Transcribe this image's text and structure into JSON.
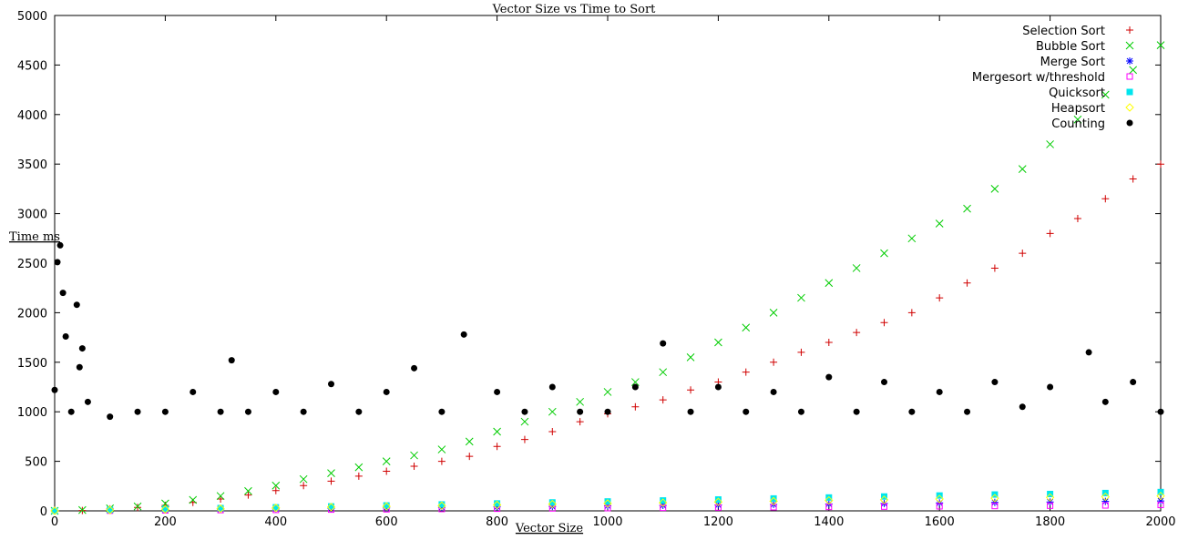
{
  "chart_data": {
    "type": "scatter",
    "title": "Vector Size vs Time to Sort",
    "xlabel": "Vector Size",
    "ylabel": "Time ms",
    "xlim": [
      0,
      2000
    ],
    "ylim": [
      0,
      5000
    ],
    "xticks": [
      "0",
      "200",
      "400",
      "600",
      "800",
      "1000",
      "1200",
      "1400",
      "1600",
      "1800",
      "2000"
    ],
    "yticks": [
      "0",
      "500",
      "1000",
      "1500",
      "2000",
      "2500",
      "3000",
      "3500",
      "4000",
      "4500",
      "5000"
    ],
    "grid": false,
    "legend_position": "top-right",
    "series": [
      {
        "name": "Selection Sort",
        "marker": "plus",
        "color": "#d00000",
        "x": [
          0,
          50,
          100,
          150,
          200,
          250,
          300,
          350,
          400,
          450,
          500,
          550,
          600,
          650,
          700,
          750,
          800,
          850,
          900,
          950,
          1000,
          1050,
          1100,
          1150,
          1200,
          1250,
          1300,
          1350,
          1400,
          1450,
          1500,
          1550,
          1600,
          1650,
          1700,
          1750,
          1800,
          1850,
          1900,
          1950,
          2000
        ],
        "y": [
          0,
          4,
          20,
          35,
          55,
          85,
          120,
          160,
          205,
          255,
          300,
          350,
          400,
          450,
          500,
          550,
          650,
          720,
          800,
          900,
          980,
          1050,
          1120,
          1220,
          1300,
          1400,
          1500,
          1600,
          1700,
          1800,
          1900,
          2000,
          2150,
          2300,
          2450,
          2600,
          2800,
          2950,
          3150,
          3350,
          3500
        ]
      },
      {
        "name": "Bubble Sort",
        "marker": "cross",
        "color": "#00cc00",
        "x": [
          0,
          50,
          100,
          150,
          200,
          250,
          300,
          350,
          400,
          450,
          500,
          550,
          600,
          650,
          700,
          750,
          800,
          850,
          900,
          950,
          1000,
          1050,
          1100,
          1150,
          1200,
          1250,
          1300,
          1350,
          1400,
          1450,
          1500,
          1550,
          1600,
          1650,
          1700,
          1750,
          1800,
          1850,
          1900,
          1950,
          2000
        ],
        "y": [
          0,
          8,
          25,
          45,
          75,
          110,
          150,
          200,
          255,
          320,
          380,
          440,
          500,
          560,
          620,
          700,
          800,
          900,
          1000,
          1100,
          1200,
          1300,
          1400,
          1550,
          1700,
          1850,
          2000,
          2150,
          2300,
          2450,
          2600,
          2750,
          2900,
          3050,
          3250,
          3450,
          3700,
          3950,
          4200,
          4450,
          4700
        ]
      },
      {
        "name": "Merge Sort",
        "marker": "star",
        "color": "#0000ff",
        "x": [
          0,
          100,
          200,
          300,
          400,
          500,
          600,
          700,
          800,
          900,
          1000,
          1100,
          1200,
          1300,
          1400,
          1500,
          1600,
          1700,
          1800,
          1900,
          2000
        ],
        "y": [
          0,
          5,
          10,
          15,
          20,
          25,
          30,
          35,
          40,
          45,
          50,
          55,
          60,
          65,
          70,
          75,
          80,
          85,
          90,
          95,
          100
        ]
      },
      {
        "name": "Mergesort w/threshold",
        "marker": "square",
        "color": "#ff00ff",
        "x": [
          0,
          100,
          200,
          300,
          400,
          500,
          600,
          700,
          800,
          900,
          1000,
          1100,
          1200,
          1300,
          1400,
          1500,
          1600,
          1700,
          1800,
          1900,
          2000
        ],
        "y": [
          0,
          2,
          5,
          8,
          10,
          13,
          16,
          19,
          22,
          25,
          28,
          31,
          34,
          37,
          40,
          43,
          46,
          49,
          52,
          55,
          60
        ]
      },
      {
        "name": "Quicksort",
        "marker": "filled-square",
        "color": "#00e5ee",
        "x": [
          0,
          100,
          200,
          300,
          400,
          500,
          600,
          700,
          800,
          900,
          1000,
          1100,
          1200,
          1300,
          1400,
          1500,
          1600,
          1700,
          1800,
          1900,
          2000
        ],
        "y": [
          0,
          10,
          20,
          28,
          36,
          45,
          55,
          65,
          75,
          85,
          95,
          105,
          115,
          125,
          135,
          145,
          155,
          165,
          170,
          180,
          190
        ]
      },
      {
        "name": "Heapsort",
        "marker": "diamond",
        "color": "#ffff00",
        "x": [
          0,
          100,
          200,
          300,
          400,
          500,
          600,
          700,
          800,
          900,
          1000,
          1100,
          1200,
          1300,
          1400,
          1500,
          1600,
          1700,
          1800,
          1900,
          2000
        ],
        "y": [
          0,
          8,
          15,
          22,
          30,
          38,
          45,
          52,
          60,
          68,
          75,
          82,
          90,
          98,
          105,
          112,
          120,
          128,
          135,
          142,
          150
        ]
      },
      {
        "name": "Counting",
        "marker": "filled-circle",
        "color": "#000000",
        "x": [
          0,
          5,
          10,
          15,
          20,
          30,
          40,
          45,
          50,
          60,
          100,
          150,
          200,
          250,
          300,
          320,
          350,
          400,
          450,
          500,
          550,
          600,
          650,
          700,
          740,
          800,
          850,
          900,
          950,
          1000,
          1050,
          1100,
          1150,
          1200,
          1250,
          1300,
          1350,
          1400,
          1450,
          1500,
          1550,
          1600,
          1650,
          1700,
          1750,
          1800,
          1870,
          1900,
          1950,
          2000
        ],
        "y": [
          1220,
          2510,
          2680,
          2200,
          1760,
          1000,
          2080,
          1450,
          1640,
          1100,
          950,
          1000,
          1000,
          1200,
          1000,
          1520,
          1000,
          1200,
          1000,
          1280,
          1000,
          1200,
          1440,
          1000,
          1780,
          1200,
          1000,
          1250,
          1000,
          1000,
          1250,
          1690,
          1000,
          1250,
          1000,
          1200,
          1000,
          1350,
          1000,
          1300,
          1000,
          1200,
          1000,
          1300,
          1050,
          1250,
          1600,
          1100,
          1300,
          1000
        ]
      }
    ]
  }
}
